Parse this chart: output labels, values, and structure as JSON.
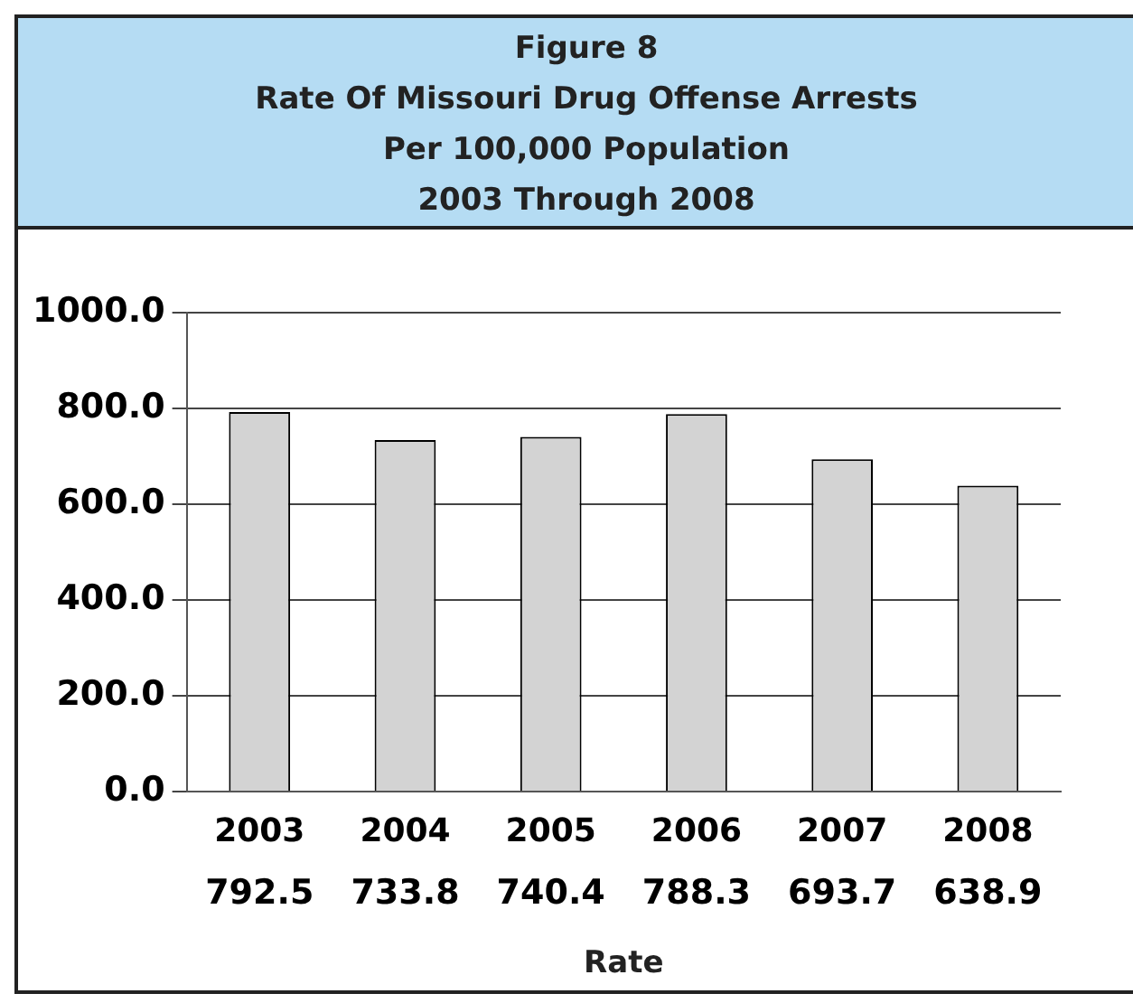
{
  "chart_data": {
    "type": "bar",
    "title": "Figure 8\nRate Of Missouri Drug Offense Arrests\nPer 100,000 Population\n2003 Through 2008",
    "xlabel": "Rate",
    "categories": [
      "2003",
      "2004",
      "2005",
      "2006",
      "2007",
      "2008"
    ],
    "values": [
      792.5,
      733.8,
      740.4,
      788.3,
      693.7,
      638.9
    ],
    "color": "#d3d3d3",
    "ylim": [
      0,
      1000
    ],
    "yticks": [
      {
        "value": 0,
        "label": "0.0"
      },
      {
        "value": 200,
        "label": "200.0"
      },
      {
        "value": 400,
        "label": "400.0"
      },
      {
        "value": 600,
        "label": "600.0"
      },
      {
        "value": 800,
        "label": "800.0"
      },
      {
        "value": 1000,
        "label": "1000.0"
      }
    ],
    "grid": "y",
    "data_labels": true
  }
}
